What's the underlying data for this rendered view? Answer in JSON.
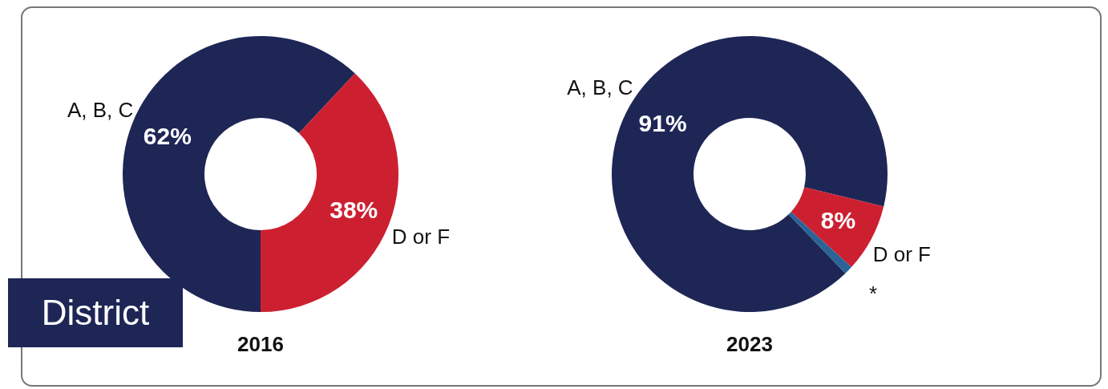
{
  "chart_data": [
    {
      "type": "donut",
      "title": "2016",
      "categories": [
        "A, B, C",
        "D or F"
      ],
      "values": [
        62,
        38
      ],
      "colors": [
        "#1e2656",
        "#cc2031"
      ],
      "value_labels": [
        "62%",
        "38%"
      ],
      "annotations": [
        "District"
      ]
    },
    {
      "type": "donut",
      "title": "2023",
      "categories": [
        "A, B, C",
        "D or F",
        "*"
      ],
      "values": [
        91,
        8,
        1
      ],
      "colors": [
        "#1e2656",
        "#cc2031",
        "#2a6496"
      ],
      "value_labels": [
        "91%",
        "8%",
        null
      ]
    }
  ]
}
